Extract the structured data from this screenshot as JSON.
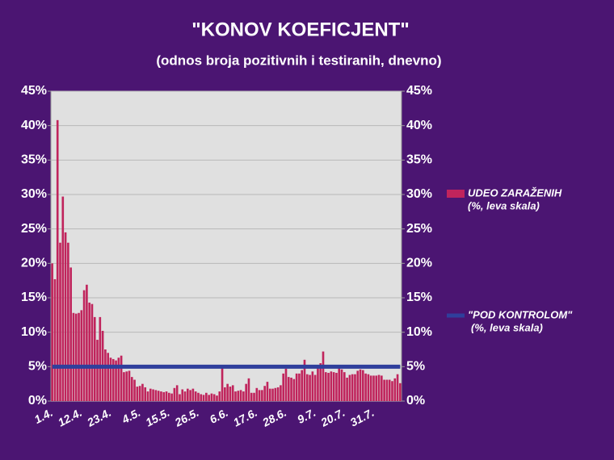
{
  "chart_data": {
    "type": "bar",
    "title": "\"KONOV KOEFICJENT\"",
    "subtitle": "(odnos broja pozitivnih i testiranih, dnevno)",
    "categories": [
      "1.4.",
      null,
      null,
      null,
      null,
      null,
      null,
      null,
      null,
      null,
      null,
      "12.4.",
      null,
      null,
      null,
      null,
      null,
      null,
      null,
      null,
      null,
      null,
      "23.4.",
      null,
      null,
      null,
      null,
      null,
      null,
      null,
      null,
      null,
      null,
      "4.5.",
      null,
      null,
      null,
      null,
      null,
      null,
      null,
      null,
      null,
      null,
      "15.5.",
      null,
      null,
      null,
      null,
      null,
      null,
      null,
      null,
      null,
      null,
      "26.5.",
      null,
      null,
      null,
      null,
      null,
      null,
      null,
      null,
      null,
      null,
      "6.6.",
      null,
      null,
      null,
      null,
      null,
      null,
      null,
      null,
      null,
      null,
      "17.6.",
      null,
      null,
      null,
      null,
      null,
      null,
      null,
      null,
      null,
      null,
      "28.6.",
      null,
      null,
      null,
      null,
      null,
      null,
      null,
      null,
      null,
      null,
      "9.7.",
      null,
      null,
      null,
      null,
      null,
      null,
      null,
      null,
      null,
      null,
      "20.7.",
      null,
      null,
      null,
      null,
      null,
      null,
      null,
      null,
      null,
      null,
      "31.7.",
      null,
      null,
      null,
      null,
      null,
      null,
      null,
      null,
      null,
      null
    ],
    "series": [
      {
        "name": "UDEO ZARAŽENIH",
        "legend_note": "(%, leva skala)",
        "type": "bar",
        "color": "#c0245c",
        "values": [
          20,
          17.7,
          40.8,
          23,
          29.7,
          24.5,
          23,
          19.4,
          12.8,
          12.7,
          12.8,
          13.2,
          16.1,
          16.9,
          14.3,
          14.1,
          12.2,
          8.9,
          12.2,
          10.2,
          7.5,
          7.0,
          6.3,
          6.1,
          5.9,
          6.3,
          6.6,
          4.2,
          4.3,
          4.4,
          3.5,
          3.1,
          2.1,
          2.2,
          2.5,
          2.0,
          1.4,
          1.8,
          1.7,
          1.6,
          1.5,
          1.4,
          1.3,
          1.4,
          1.2,
          1.1,
          1.9,
          2.3,
          1.0,
          1.7,
          1.4,
          1.8,
          1.6,
          1.8,
          1.4,
          1.2,
          1.0,
          0.9,
          1.2,
          0.9,
          1.1,
          1.0,
          0.8,
          1.4,
          4.8,
          2.0,
          2.5,
          2.1,
          2.3,
          1.4,
          1.5,
          1.6,
          1.4,
          2.5,
          3.3,
          1.2,
          1.2,
          1.9,
          1.6,
          1.6,
          2.2,
          2.8,
          1.8,
          1.8,
          1.9,
          2.0,
          2.3,
          4.0,
          4.7,
          3.5,
          3.4,
          3.2,
          4.0,
          4.0,
          4.5,
          6.0,
          3.9,
          3.8,
          4.3,
          3.8,
          4.8,
          5.5,
          7.2,
          4.2,
          4.1,
          4.3,
          4.2,
          4.1,
          5.0,
          4.6,
          4.2,
          3.4,
          3.8,
          3.9,
          3.9,
          4.4,
          4.6,
          4.5,
          4.0,
          3.9,
          3.7,
          3.7,
          3.7,
          3.8,
          3.7,
          3.1,
          3.1,
          3.1,
          2.9,
          3.3,
          3.9,
          2.6
        ]
      },
      {
        "name": "\"POD KONTROLOM\"",
        "legend_note": "(%, leva skala)",
        "type": "line",
        "color": "#2f3f9c",
        "values": [
          5,
          5,
          5,
          5,
          5,
          5,
          5,
          5,
          5,
          5,
          5,
          5,
          5,
          5,
          5,
          5,
          5,
          5,
          5,
          5,
          5,
          5,
          5,
          5,
          5,
          5,
          5,
          5,
          5,
          5,
          5,
          5,
          5,
          5,
          5,
          5,
          5,
          5,
          5,
          5,
          5,
          5,
          5,
          5,
          5,
          5,
          5,
          5,
          5,
          5,
          5,
          5,
          5,
          5,
          5,
          5,
          5,
          5,
          5,
          5,
          5,
          5,
          5,
          5,
          5,
          5,
          5,
          5,
          5,
          5,
          5,
          5,
          5,
          5,
          5,
          5,
          5,
          5,
          5,
          5,
          5,
          5,
          5,
          5,
          5,
          5,
          5,
          5,
          5,
          5,
          5,
          5,
          5,
          5,
          5,
          5,
          5,
          5,
          5,
          5,
          5,
          5,
          5,
          5,
          5,
          5,
          5,
          5,
          5,
          5,
          5,
          5,
          5,
          5,
          5,
          5,
          5,
          5,
          5,
          5,
          5,
          5,
          5,
          5,
          5,
          5,
          5,
          5,
          5,
          5,
          5,
          5
        ]
      }
    ],
    "ylim": [
      0,
      45
    ],
    "yticks": [
      {
        "value": 0,
        "label": "0%"
      },
      {
        "value": 5,
        "label": "5%"
      },
      {
        "value": 10,
        "label": "10%"
      },
      {
        "value": 15,
        "label": "15%"
      },
      {
        "value": 20,
        "label": "20%"
      },
      {
        "value": 25,
        "label": "25%"
      },
      {
        "value": 30,
        "label": "30%"
      },
      {
        "value": 35,
        "label": "35%"
      },
      {
        "value": 40,
        "label": "40%"
      },
      {
        "value": 45,
        "label": "45%"
      }
    ],
    "y2lim": [
      0,
      45
    ],
    "y2ticks": [
      {
        "value": 0,
        "label": "0%"
      },
      {
        "value": 5,
        "label": "5%"
      },
      {
        "value": 10,
        "label": "10%"
      },
      {
        "value": 15,
        "label": "15%"
      },
      {
        "value": 20,
        "label": "20%"
      },
      {
        "value": 25,
        "label": "25%"
      },
      {
        "value": 30,
        "label": "30%"
      },
      {
        "value": 35,
        "label": "35%"
      },
      {
        "value": 40,
        "label": "40%"
      },
      {
        "value": 45,
        "label": "45%"
      }
    ],
    "grid": true,
    "legend": "right"
  }
}
